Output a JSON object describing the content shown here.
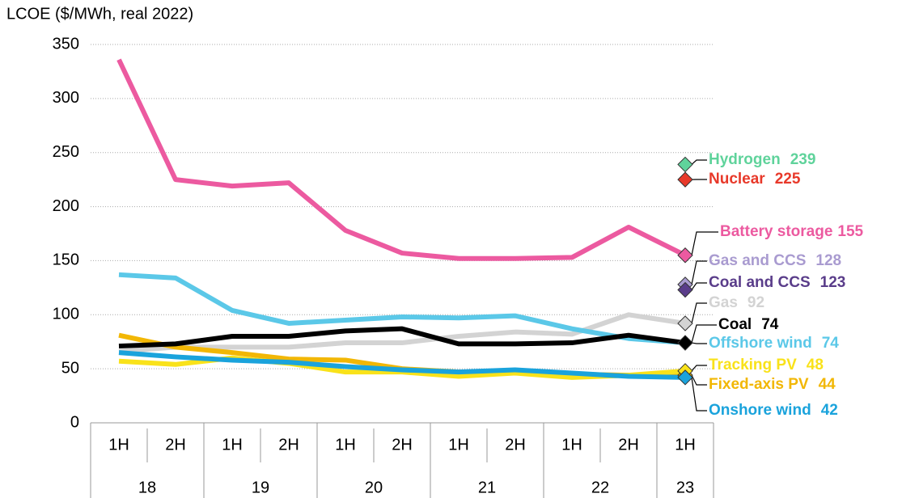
{
  "chart_data": {
    "type": "line",
    "y_axis_label": "LCOE ($/MWh, real 2022)",
    "groups": [
      {
        "label": "18",
        "categories": [
          "1H",
          "2H"
        ]
      },
      {
        "label": "19",
        "categories": [
          "1H",
          "2H"
        ]
      },
      {
        "label": "20",
        "categories": [
          "1H",
          "2H"
        ]
      },
      {
        "label": "21",
        "categories": [
          "1H",
          "2H"
        ]
      },
      {
        "label": "22",
        "categories": [
          "1H",
          "2H"
        ]
      },
      {
        "label": "23",
        "categories": [
          "1H"
        ]
      }
    ],
    "ylim": [
      0,
      350
    ],
    "yticks": [
      0,
      50,
      100,
      150,
      200,
      250,
      300,
      350
    ],
    "grid": true,
    "series": [
      {
        "name": "Hydrogen",
        "color": "#5fd39b",
        "values": [
          null,
          null,
          null,
          null,
          null,
          null,
          null,
          null,
          null,
          null,
          239
        ]
      },
      {
        "name": "Nuclear",
        "color": "#e8392a",
        "values": [
          null,
          null,
          null,
          null,
          null,
          null,
          null,
          null,
          null,
          null,
          225
        ]
      },
      {
        "name": "Gas and CCS",
        "color": "#a99bd0",
        "values": [
          null,
          null,
          null,
          null,
          null,
          null,
          null,
          null,
          null,
          null,
          128
        ]
      },
      {
        "name": "Coal and CCS",
        "color": "#5a3d8a",
        "values": [
          null,
          null,
          null,
          null,
          null,
          null,
          null,
          null,
          null,
          null,
          123
        ]
      },
      {
        "name": "Gas",
        "color": "#d3d3d3",
        "values": [
          66,
          70,
          70,
          70,
          74,
          74,
          80,
          84,
          82,
          100,
          92
        ]
      },
      {
        "name": "Offshore wind",
        "color": "#5bc8e8",
        "values": [
          137,
          134,
          104,
          92,
          95,
          98,
          97,
          99,
          87,
          78,
          74
        ]
      },
      {
        "name": "Fixed-axis PV",
        "color": "#f2b705",
        "values": [
          81,
          70,
          65,
          59,
          58,
          50,
          47,
          47,
          45,
          44,
          44
        ]
      },
      {
        "name": "Tracking PV",
        "color": "#f9e21a",
        "values": [
          57,
          54,
          60,
          55,
          47,
          47,
          43,
          46,
          42,
          44,
          48
        ]
      },
      {
        "name": "Onshore wind",
        "color": "#1aa3dc",
        "values": [
          65,
          61,
          58,
          56,
          52,
          49,
          47,
          49,
          46,
          43,
          42
        ]
      },
      {
        "name": "Coal",
        "color": "#000000",
        "values": [
          71,
          73,
          80,
          80,
          85,
          87,
          73,
          73,
          74,
          81,
          74
        ]
      },
      {
        "name": "Battery storage",
        "color": "#ec5aa0",
        "values": [
          336,
          225,
          219,
          222,
          178,
          157,
          152,
          152,
          153,
          181,
          155
        ]
      }
    ]
  }
}
